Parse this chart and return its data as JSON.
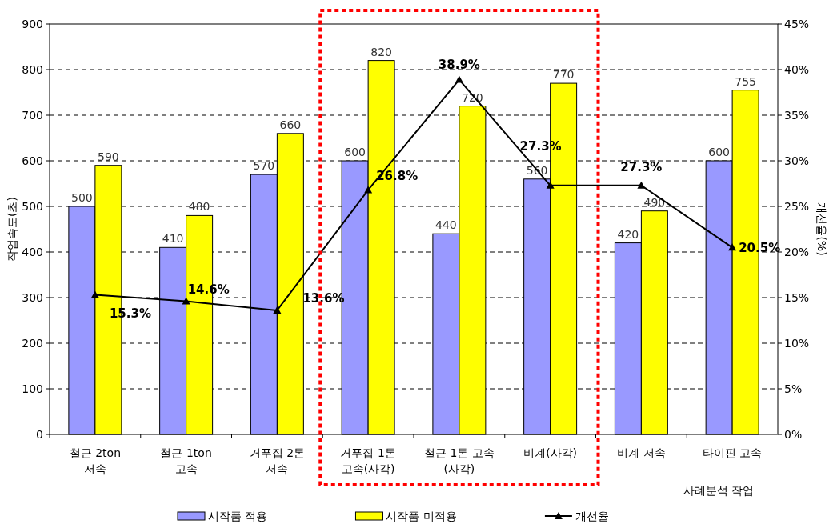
{
  "chart_data": {
    "type": "bar",
    "categories": [
      "철근 2ton\n저속",
      "철근 1ton\n고속",
      "거푸집 2톤\n저속",
      "거푸집 1톤\n고속(사각)",
      "철근 1톤 고속\n(사각)",
      "비계(사각)",
      "비계 저속",
      "타이핀 고속"
    ],
    "series": [
      {
        "name": "시작품 적용",
        "color": "#9999ff",
        "values": [
          500,
          410,
          570,
          600,
          440,
          560,
          420,
          600
        ],
        "value_labels": [
          "500",
          "410",
          "570",
          "600",
          "440",
          "560",
          "420",
          "600"
        ]
      },
      {
        "name": "시작품 미적용",
        "color": "#ffff00",
        "values": [
          590,
          480,
          660,
          820,
          720,
          770,
          490,
          755
        ],
        "value_labels": [
          "590",
          "480",
          "660",
          "820",
          "720",
          "770",
          "490",
          "755"
        ]
      },
      {
        "name": "개선율",
        "type": "line",
        "axis": "y2",
        "color": "#000000",
        "marker": "triangle",
        "values": [
          15.3,
          14.6,
          13.6,
          26.8,
          38.9,
          27.3,
          27.3,
          20.5
        ],
        "value_labels": [
          "15.3%",
          "14.6%",
          "13.6%",
          "26.8%",
          "38.9%",
          "27.3%",
          "27.3%",
          "20.5%"
        ]
      }
    ],
    "xlabel": "사례분석 작업",
    "ylabel": "작업속도(초)",
    "y2label": "개선율(%)",
    "ylim": [
      0,
      900
    ],
    "yticks": [
      0,
      100,
      200,
      300,
      400,
      500,
      600,
      700,
      800,
      900
    ],
    "y2lim": [
      0,
      45
    ],
    "y2ticks": [
      {
        "value": 0,
        "label": "0%"
      },
      {
        "value": 5,
        "label": "5%"
      },
      {
        "value": 10,
        "label": "10%"
      },
      {
        "value": 15,
        "label": "15%"
      },
      {
        "value": 20,
        "label": "20%"
      },
      {
        "value": 25,
        "label": "25%"
      },
      {
        "value": 30,
        "label": "30%"
      },
      {
        "value": 35,
        "label": "35%"
      },
      {
        "value": 40,
        "label": "40%"
      },
      {
        "value": 45,
        "label": "45%"
      }
    ],
    "grid": "y",
    "legend": "bottom"
  }
}
